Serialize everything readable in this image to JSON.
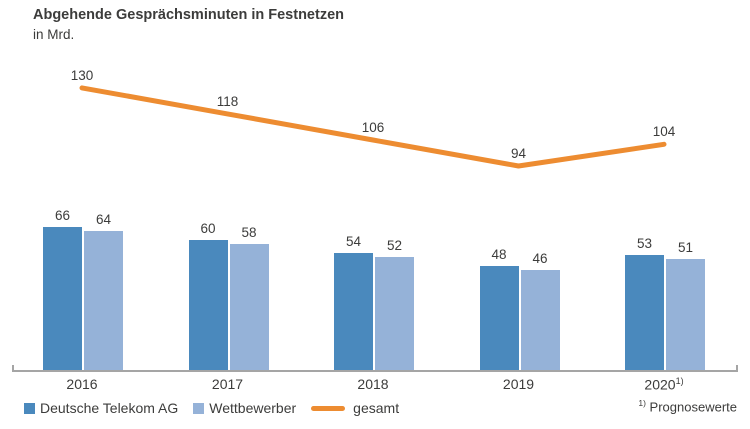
{
  "header": {
    "title": "Abgehende Gesprächsminuten in Festnetzen",
    "subtitle": "in Mrd."
  },
  "chart_data": {
    "type": "bar+line",
    "title": "Abgehende Gesprächsminuten in Festnetzen",
    "ylabel": "in Mrd.",
    "categories": [
      "2016",
      "2017",
      "2018",
      "2019",
      "2020"
    ],
    "category_superscripts": [
      "",
      "",
      "",
      "",
      "1)"
    ],
    "series": [
      {
        "name": "Deutsche Telekom AG",
        "type": "bar",
        "color": "#4a89bd",
        "values": [
          66,
          60,
          54,
          48,
          53
        ]
      },
      {
        "name": "Wettbewerber",
        "type": "bar",
        "color": "#95b2d8",
        "values": [
          64,
          58,
          52,
          46,
          51
        ]
      },
      {
        "name": "gesamt",
        "type": "line",
        "color": "#ed8c31",
        "values": [
          130,
          118,
          106,
          94,
          104
        ]
      }
    ],
    "ylim": [
      0,
      170
    ],
    "grid": false,
    "value_labels": true,
    "legend_position": "bottom",
    "axis_color": "#a5a5a5",
    "text_color": "#3c3c3b"
  },
  "legend": {
    "items": [
      "Deutsche Telekom AG",
      "Wettbewerber",
      "gesamt"
    ]
  },
  "footnote": {
    "marker": "1)",
    "text": "Prognosewerte"
  }
}
